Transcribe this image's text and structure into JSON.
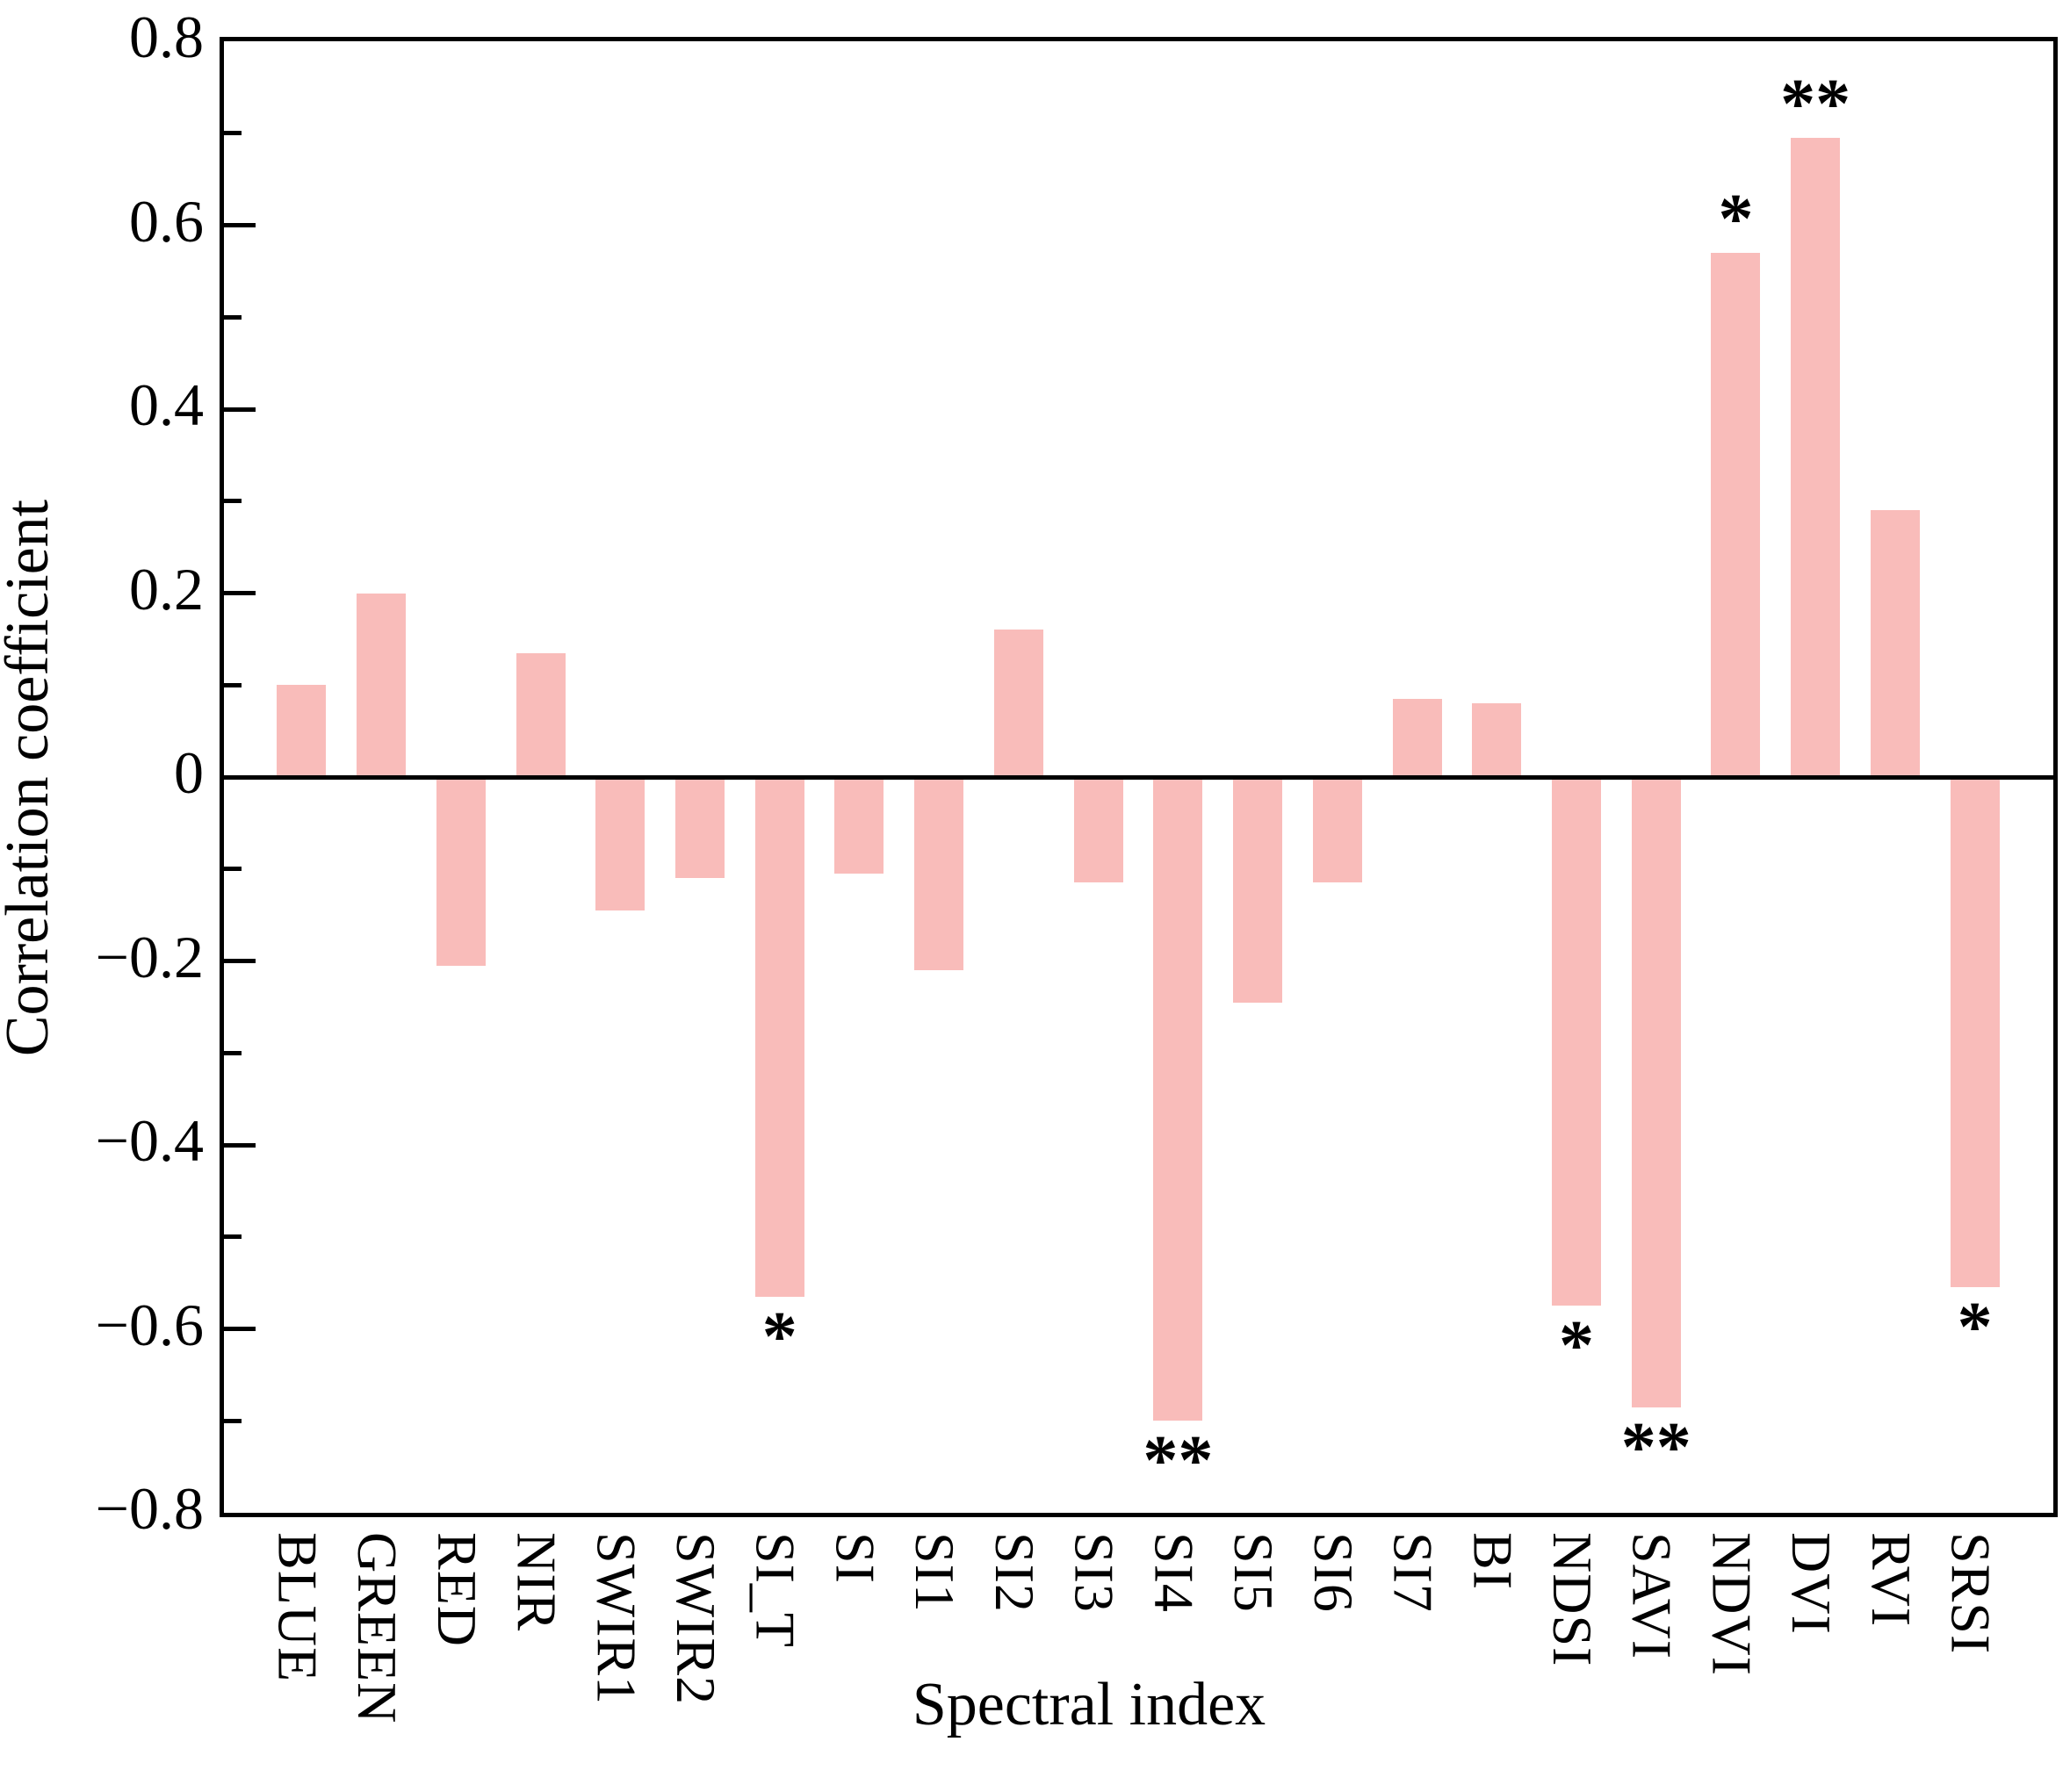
{
  "chart_data": {
    "type": "bar",
    "title": "",
    "xlabel": "Spectral index",
    "ylabel": "Correlation coefficient",
    "ylim": [
      -0.8,
      0.8
    ],
    "ytick_major_interval": 0.2,
    "ytick_minor_interval": 0.1,
    "ytick_labels": [
      "0.8",
      "0.6",
      "0.4",
      "0.2",
      "0",
      "−0.2",
      "−0.4",
      "−0.6",
      "−0.8"
    ],
    "grid": false,
    "legend_position": "none",
    "bar_color": "#f9bcba",
    "axis_color": "#000000",
    "significance_note_single": "*",
    "significance_note_double": "**",
    "categories": [
      "BLUE",
      "GREEN",
      "RED",
      "NIR",
      "SWIR1",
      "SWIR2",
      "SI_T",
      "SI",
      "SI1",
      "SI2",
      "SI3",
      "SI4",
      "SI5",
      "SI6",
      "SI7",
      "BI",
      "NDSI",
      "SAVI",
      "NDVI",
      "DVI",
      "RVI",
      "SRSI"
    ],
    "values": [
      0.1,
      0.2,
      -0.205,
      0.135,
      -0.145,
      -0.11,
      -0.565,
      -0.105,
      -0.21,
      0.16,
      -0.115,
      -0.7,
      -0.245,
      -0.115,
      0.085,
      0.08,
      -0.575,
      -0.685,
      0.57,
      0.695,
      0.29,
      -0.555
    ],
    "significance": [
      "",
      "",
      "",
      "",
      "",
      "",
      "*",
      "",
      "",
      "",
      "",
      "**",
      "",
      "",
      "",
      "",
      "*",
      "**",
      "*",
      "**",
      "",
      "*"
    ]
  }
}
